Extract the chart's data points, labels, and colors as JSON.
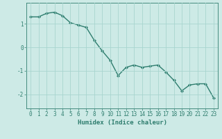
{
  "x": [
    0,
    1,
    2,
    3,
    4,
    5,
    6,
    7,
    8,
    9,
    10,
    11,
    12,
    13,
    14,
    15,
    16,
    17,
    18,
    19,
    20,
    21,
    22,
    23
  ],
  "y": [
    1.3,
    1.3,
    1.45,
    1.5,
    1.35,
    1.05,
    0.95,
    0.85,
    0.3,
    -0.15,
    -0.55,
    -1.2,
    -0.85,
    -0.75,
    -0.85,
    -0.8,
    -0.75,
    -1.05,
    -1.4,
    -1.85,
    -1.6,
    -1.55,
    -1.55,
    -2.15
  ],
  "line_color": "#2e7d6e",
  "marker": "D",
  "marker_size": 2.0,
  "bg_color": "#cdeae6",
  "grid_color": "#a8d5cf",
  "tick_color": "#2e7d6e",
  "xlabel": "Humidex (Indice chaleur)",
  "xlabel_fontsize": 6.5,
  "ylim": [
    -2.6,
    1.9
  ],
  "yticks": [
    -2,
    -1,
    0,
    1
  ],
  "ytick_labels": [
    "-2",
    "-1",
    "0",
    "1"
  ],
  "xticks": [
    0,
    1,
    2,
    3,
    4,
    5,
    6,
    7,
    8,
    9,
    10,
    11,
    12,
    13,
    14,
    15,
    16,
    17,
    18,
    19,
    20,
    21,
    22,
    23
  ],
  "tick_fontsize": 5.5,
  "line_width": 1.0
}
